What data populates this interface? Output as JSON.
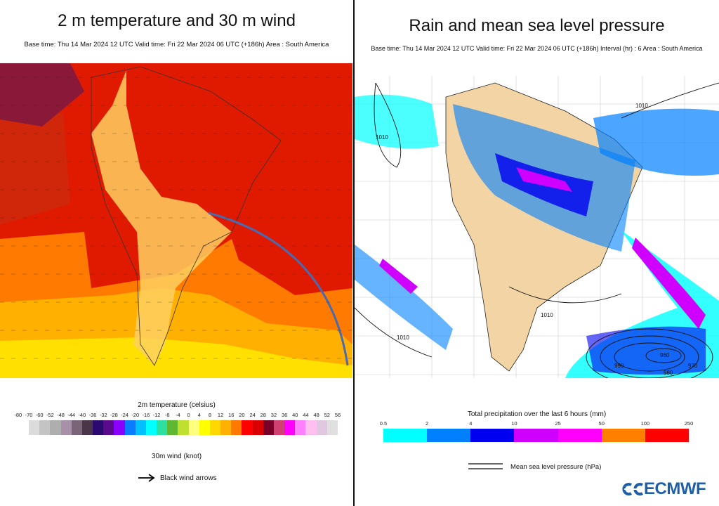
{
  "left_panel": {
    "title": "2 m temperature and 30 m wind",
    "subtitle": "Base time: Thu 14 Mar 2024 12 UTC Valid time: Fri 22 Mar 2024 06 UTC (+186h) Area : South America",
    "legend_title": "2m temperature (celsius)",
    "legend_ticks": [
      "-80",
      "-70",
      "-60",
      "-52",
      "-48",
      "-44",
      "-40",
      "-36",
      "-32",
      "-28",
      "-24",
      "-20",
      "-16",
      "-12",
      "-8",
      "-4",
      "0",
      "4",
      "8",
      "12",
      "16",
      "20",
      "24",
      "28",
      "32",
      "36",
      "40",
      "44",
      "48",
      "52",
      "56"
    ],
    "legend_colors": [
      "#dcdcdc",
      "#c4c4c4",
      "#aeaeae",
      "#a891a8",
      "#7a6478",
      "#4a3448",
      "#2a0a6e",
      "#5a0a8a",
      "#8a00ff",
      "#0a7cff",
      "#00c0ff",
      "#00ffff",
      "#2ee0a0",
      "#60b830",
      "#c0e030",
      "#ffff80",
      "#ffff00",
      "#ffd800",
      "#ffb000",
      "#ff7800",
      "#ff0000",
      "#d80000",
      "#780028",
      "#d04070",
      "#ff00ff",
      "#ff80ff",
      "#ffc0f0",
      "#e0c8e0",
      "#e0e0e0"
    ],
    "wind_title": "30m wind (knot)",
    "wind_legend": "Black wind arrows"
  },
  "right_panel": {
    "title": "Rain and mean sea level pressure",
    "subtitle": "Base time: Thu 14 Mar 2024 12 UTC Valid time: Fri 22 Mar 2024 06 UTC (+186h) Interval (hr) : 6 Area : South America",
    "legend_title": "Total precipitation over the last 6 hours (mm)",
    "legend_ticks": [
      "0.5",
      "2",
      "4",
      "10",
      "25",
      "50",
      "100",
      "250"
    ],
    "legend_colors": [
      "#00ffff",
      "#0080ff",
      "#0000f0",
      "#d000ff",
      "#ff00ff",
      "#ff8000",
      "#ff0000"
    ],
    "pressure_legend": "Mean sea level pressure (hPa)",
    "isobar_labels": [
      "1010",
      "1010",
      "1010",
      "1010",
      "960",
      "970",
      "980",
      "990"
    ]
  },
  "logo": {
    "text": "ECMWF",
    "color": "#1f5fa8"
  },
  "chart_data": [
    {
      "type": "heatmap",
      "title": "2 m temperature and 30 m wind",
      "colorbar_label": "2m temperature (celsius)",
      "colorbar_range": [
        -80,
        56
      ]
    },
    {
      "type": "heatmap",
      "title": "Rain and mean sea level pressure",
      "colorbar_label": "Total precipitation over the last 6 hours (mm)",
      "colorbar_range": [
        0.5,
        250
      ]
    }
  ]
}
